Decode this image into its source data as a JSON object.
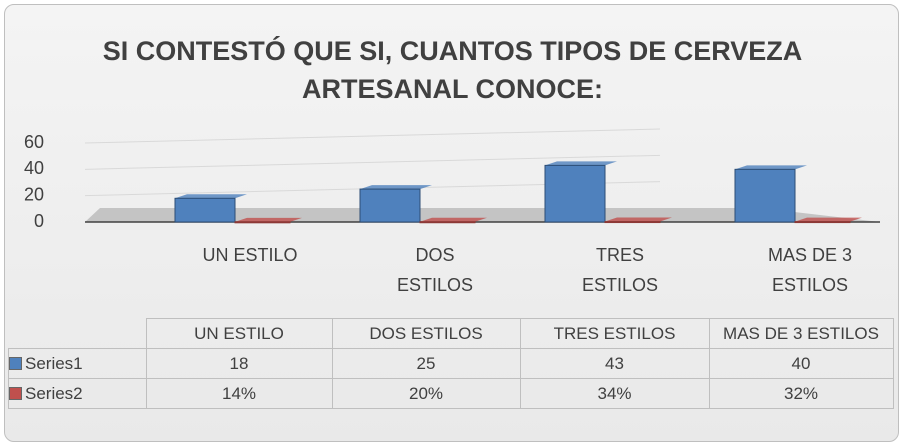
{
  "chart_data": {
    "type": "bar3d",
    "title": "SI CONTESTÓ QUE SI, CUANTOS TIPOS DE CERVEZA ARTESANAL CONOCE:",
    "categories": [
      "UN ESTILO",
      "DOS ESTILOS",
      "TRES ESTILOS",
      "MAS DE 3 ESTILOS"
    ],
    "series": [
      {
        "name": "Series1",
        "color": "#4f81bd",
        "values": [
          18,
          25,
          43,
          40
        ]
      },
      {
        "name": "Series2",
        "color": "#c0504d",
        "values": [
          0.14,
          0.2,
          0.34,
          0.32
        ],
        "value_labels": [
          "14%",
          "20%",
          "34%",
          "32%"
        ]
      }
    ],
    "ylim": [
      0,
      60
    ],
    "yticks": [
      0,
      20,
      40,
      60
    ],
    "grid": true,
    "data_table": true
  }
}
